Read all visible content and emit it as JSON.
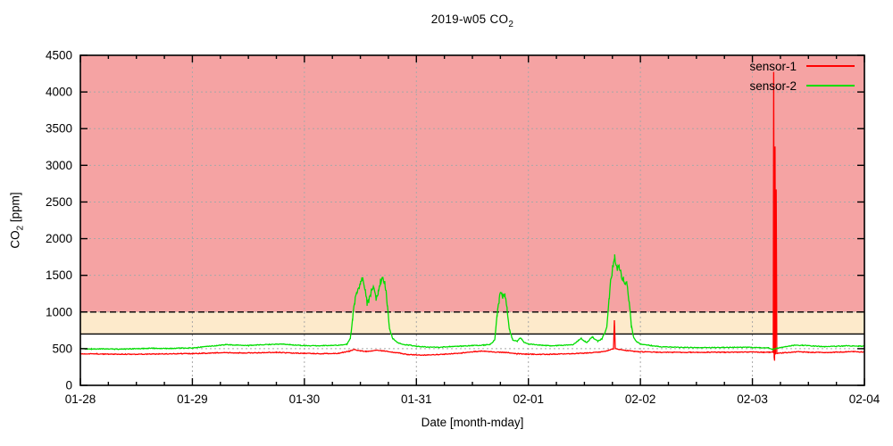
{
  "chart_data": {
    "type": "line",
    "title_parts": {
      "main": "2019-w05 CO",
      "sub": "2"
    },
    "xlabel": "Date [month-mday]",
    "ylabel_parts": {
      "pre": "CO",
      "sub": "2",
      "post": " [ppm]"
    },
    "x_ticks": [
      "01-28",
      "01-29",
      "01-30",
      "01-31",
      "02-01",
      "02-02",
      "02-03",
      "02-04"
    ],
    "x_minor_tick_days": 0.25,
    "y_ticks": [
      0,
      500,
      1000,
      1500,
      2000,
      2500,
      3000,
      3500,
      4000,
      4500
    ],
    "ylim": [
      0,
      4500
    ],
    "xlim_days": [
      0,
      7
    ],
    "grid": true,
    "legend_position": "top-right",
    "colors": {
      "frame": "#000000",
      "grid": "#a8a8a8",
      "threshold": "#000000",
      "zone_warning": "#fdeacb",
      "zone_danger": "#f5a3a3",
      "background": "#ffffff"
    },
    "zones": [
      {
        "name": "warning",
        "from": 700,
        "to": 1000,
        "color": "#fdeacb"
      },
      {
        "name": "danger",
        "from": 1000,
        "to": 4500,
        "color": "#f5a3a3"
      }
    ],
    "threshold_lines": [
      {
        "value": 700,
        "style": "solid"
      },
      {
        "value": 1000,
        "style": "dashed"
      }
    ],
    "series": [
      {
        "name": "sensor-1",
        "color": "#ff0000",
        "x_unit": "days since 01-28 00:00",
        "y_unit": "ppm",
        "points": [
          [
            0.0,
            430
          ],
          [
            0.15,
            428
          ],
          [
            0.3,
            425
          ],
          [
            0.5,
            424
          ],
          [
            0.7,
            428
          ],
          [
            0.9,
            432
          ],
          [
            1.0,
            432
          ],
          [
            1.15,
            440
          ],
          [
            1.3,
            447
          ],
          [
            1.45,
            442
          ],
          [
            1.6,
            445
          ],
          [
            1.75,
            450
          ],
          [
            1.9,
            440
          ],
          [
            2.0,
            436
          ],
          [
            2.15,
            432
          ],
          [
            2.3,
            436
          ],
          [
            2.4,
            465
          ],
          [
            2.45,
            488
          ],
          [
            2.5,
            470
          ],
          [
            2.55,
            462
          ],
          [
            2.6,
            468
          ],
          [
            2.65,
            478
          ],
          [
            2.7,
            470
          ],
          [
            2.78,
            452
          ],
          [
            2.85,
            440
          ],
          [
            2.92,
            420
          ],
          [
            3.0,
            415
          ],
          [
            3.1,
            412
          ],
          [
            3.25,
            425
          ],
          [
            3.4,
            440
          ],
          [
            3.5,
            458
          ],
          [
            3.58,
            468
          ],
          [
            3.65,
            460
          ],
          [
            3.72,
            452
          ],
          [
            3.8,
            448
          ],
          [
            3.9,
            432
          ],
          [
            4.0,
            424
          ],
          [
            4.15,
            422
          ],
          [
            4.3,
            428
          ],
          [
            4.45,
            436
          ],
          [
            4.55,
            444
          ],
          [
            4.65,
            455
          ],
          [
            4.72,
            478
          ],
          [
            4.76,
            500
          ],
          [
            4.768,
            880
          ],
          [
            4.776,
            500
          ],
          [
            4.85,
            478
          ],
          [
            4.95,
            462
          ],
          [
            5.0,
            458
          ],
          [
            5.15,
            452
          ],
          [
            5.3,
            450
          ],
          [
            5.45,
            450
          ],
          [
            5.6,
            452
          ],
          [
            5.75,
            450
          ],
          [
            5.9,
            452
          ],
          [
            6.0,
            455
          ],
          [
            6.1,
            450
          ],
          [
            6.15,
            452
          ],
          [
            6.18,
            452
          ],
          [
            6.186,
            450
          ],
          [
            6.19,
            4300
          ],
          [
            6.194,
            380
          ],
          [
            6.198,
            340
          ],
          [
            6.202,
            3300
          ],
          [
            6.206,
            420
          ],
          [
            6.212,
            2700
          ],
          [
            6.218,
            430
          ],
          [
            6.23,
            440
          ],
          [
            6.3,
            445
          ],
          [
            6.4,
            458
          ],
          [
            6.5,
            452
          ],
          [
            6.6,
            448
          ],
          [
            6.7,
            450
          ],
          [
            6.8,
            455
          ],
          [
            6.9,
            460
          ],
          [
            7.0,
            455
          ]
        ]
      },
      {
        "name": "sensor-2",
        "color": "#00dd00",
        "x_unit": "days since 01-28 00:00",
        "y_unit": "ppm",
        "points": [
          [
            0.0,
            500
          ],
          [
            0.1,
            495
          ],
          [
            0.2,
            498
          ],
          [
            0.35,
            492
          ],
          [
            0.5,
            500
          ],
          [
            0.65,
            505
          ],
          [
            0.8,
            502
          ],
          [
            0.9,
            508
          ],
          [
            1.0,
            510
          ],
          [
            1.1,
            525
          ],
          [
            1.2,
            540
          ],
          [
            1.3,
            555
          ],
          [
            1.4,
            548
          ],
          [
            1.5,
            545
          ],
          [
            1.6,
            552
          ],
          [
            1.7,
            558
          ],
          [
            1.8,
            565
          ],
          [
            1.9,
            550
          ],
          [
            2.0,
            542
          ],
          [
            2.1,
            538
          ],
          [
            2.2,
            542
          ],
          [
            2.3,
            548
          ],
          [
            2.38,
            560
          ],
          [
            2.41,
            640
          ],
          [
            2.43,
            900
          ],
          [
            2.45,
            1150
          ],
          [
            2.47,
            1300
          ],
          [
            2.5,
            1400
          ],
          [
            2.52,
            1450
          ],
          [
            2.54,
            1320
          ],
          [
            2.56,
            1120
          ],
          [
            2.58,
            1180
          ],
          [
            2.6,
            1300
          ],
          [
            2.62,
            1340
          ],
          [
            2.64,
            1180
          ],
          [
            2.66,
            1280
          ],
          [
            2.68,
            1420
          ],
          [
            2.7,
            1440
          ],
          [
            2.72,
            1400
          ],
          [
            2.74,
            1100
          ],
          [
            2.76,
            760
          ],
          [
            2.79,
            640
          ],
          [
            2.83,
            580
          ],
          [
            2.9,
            555
          ],
          [
            3.0,
            535
          ],
          [
            3.1,
            522
          ],
          [
            3.2,
            518
          ],
          [
            3.3,
            528
          ],
          [
            3.4,
            535
          ],
          [
            3.5,
            542
          ],
          [
            3.6,
            548
          ],
          [
            3.66,
            558
          ],
          [
            3.7,
            620
          ],
          [
            3.72,
            950
          ],
          [
            3.74,
            1180
          ],
          [
            3.76,
            1270
          ],
          [
            3.77,
            1200
          ],
          [
            3.79,
            1260
          ],
          [
            3.81,
            1050
          ],
          [
            3.83,
            760
          ],
          [
            3.86,
            620
          ],
          [
            3.9,
            600
          ],
          [
            3.93,
            650
          ],
          [
            3.96,
            590
          ],
          [
            4.0,
            565
          ],
          [
            4.1,
            548
          ],
          [
            4.2,
            540
          ],
          [
            4.3,
            545
          ],
          [
            4.4,
            555
          ],
          [
            4.47,
            640
          ],
          [
            4.52,
            580
          ],
          [
            4.57,
            660
          ],
          [
            4.62,
            600
          ],
          [
            4.66,
            640
          ],
          [
            4.7,
            780
          ],
          [
            4.72,
            1150
          ],
          [
            4.74,
            1500
          ],
          [
            4.76,
            1650
          ],
          [
            4.77,
            1760
          ],
          [
            4.79,
            1560
          ],
          [
            4.81,
            1640
          ],
          [
            4.83,
            1500
          ],
          [
            4.85,
            1440
          ],
          [
            4.88,
            1380
          ],
          [
            4.9,
            1150
          ],
          [
            4.92,
            800
          ],
          [
            4.94,
            650
          ],
          [
            4.97,
            590
          ],
          [
            5.0,
            565
          ],
          [
            5.1,
            540
          ],
          [
            5.2,
            525
          ],
          [
            5.35,
            518
          ],
          [
            5.5,
            515
          ],
          [
            5.65,
            515
          ],
          [
            5.8,
            518
          ],
          [
            5.95,
            520
          ],
          [
            6.05,
            515
          ],
          [
            6.15,
            510
          ],
          [
            6.18,
            490
          ],
          [
            6.22,
            505
          ],
          [
            6.3,
            530
          ],
          [
            6.38,
            548
          ],
          [
            6.45,
            545
          ],
          [
            6.55,
            535
          ],
          [
            6.65,
            528
          ],
          [
            6.75,
            532
          ],
          [
            6.85,
            540
          ],
          [
            6.95,
            535
          ],
          [
            7.0,
            535
          ]
        ]
      }
    ]
  }
}
